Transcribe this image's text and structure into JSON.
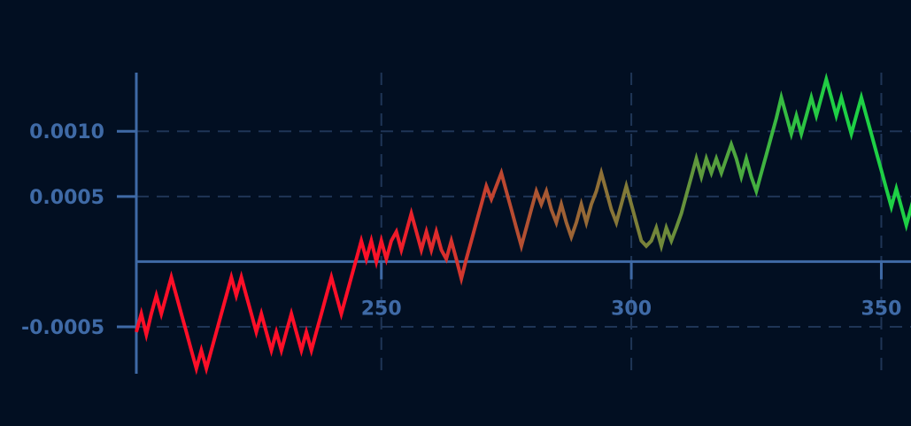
{
  "chart_data": {
    "type": "line",
    "title": "",
    "xlabel": "",
    "ylabel": "",
    "xlim": [
      201,
      357
    ],
    "ylim": [
      -0.00086,
      0.00145
    ],
    "x_ticks": [
      250,
      300,
      350
    ],
    "x_tick_labels": [
      "250",
      "300",
      "350"
    ],
    "y_ticks": [
      -0.0005,
      0.0005,
      0.001
    ],
    "y_tick_labels": [
      "-0.0005",
      "0.0005",
      "0.0010"
    ],
    "grid": true,
    "legend": "none",
    "colors": {
      "background": "#020f22",
      "axis": "#3f6aa6",
      "grid": "#1f3556",
      "tick_label": "#3f6aa6",
      "line_start": "#ff0f28",
      "line_end": "#1ed045"
    },
    "x": [
      201,
      202,
      203,
      204,
      205,
      206,
      207,
      208,
      209,
      210,
      211,
      212,
      213,
      214,
      215,
      216,
      217,
      218,
      219,
      220,
      221,
      222,
      223,
      224,
      225,
      226,
      227,
      228,
      229,
      230,
      231,
      232,
      233,
      234,
      235,
      236,
      237,
      238,
      239,
      240,
      241,
      242,
      243,
      244,
      245,
      246,
      247,
      248,
      249,
      250,
      251,
      252,
      253,
      254,
      255,
      256,
      257,
      258,
      259,
      260,
      261,
      262,
      263,
      264,
      265,
      266,
      267,
      268,
      269,
      270,
      271,
      272,
      273,
      274,
      275,
      276,
      277,
      278,
      279,
      280,
      281,
      282,
      283,
      284,
      285,
      286,
      287,
      288,
      289,
      290,
      291,
      292,
      293,
      294,
      295,
      296,
      297,
      298,
      299,
      300,
      301,
      302,
      303,
      304,
      305,
      306,
      307,
      308,
      309,
      310,
      311,
      312,
      313,
      314,
      315,
      316,
      317,
      318,
      319,
      320,
      321,
      322,
      323,
      324,
      325,
      326,
      327,
      328,
      329,
      330,
      331,
      332,
      333,
      334,
      335,
      336,
      337,
      338,
      339,
      340,
      341,
      342,
      343,
      344,
      345,
      346,
      347,
      348,
      349,
      350,
      351,
      352,
      353,
      354,
      355,
      356,
      357
    ],
    "values": [
      -0.00054,
      -0.0004,
      -0.00056,
      -0.0004,
      -0.00026,
      -0.0004,
      -0.00026,
      -0.00012,
      -0.00026,
      -0.0004,
      -0.00054,
      -0.00068,
      -0.00082,
      -0.00068,
      -0.00082,
      -0.00068,
      -0.00054,
      -0.0004,
      -0.00026,
      -0.00012,
      -0.00026,
      -0.00012,
      -0.00026,
      -0.0004,
      -0.00054,
      -0.0004,
      -0.00054,
      -0.00068,
      -0.00054,
      -0.00068,
      -0.00054,
      -0.0004,
      -0.00054,
      -0.00068,
      -0.00054,
      -0.00068,
      -0.00054,
      -0.0004,
      -0.00026,
      -0.00012,
      -0.00026,
      -0.0004,
      -0.00026,
      -0.00012,
      2e-05,
      0.00016,
      2e-05,
      0.00016,
      0.0,
      0.00016,
      2e-05,
      0.00016,
      0.00023,
      9e-05,
      0.00023,
      0.00037,
      0.00023,
      9e-05,
      0.00023,
      9e-05,
      0.00023,
      9e-05,
      2e-05,
      0.00016,
      2e-05,
      -0.00013,
      2e-05,
      0.00016,
      0.0003,
      0.00044,
      0.00058,
      0.00048,
      0.00058,
      0.00068,
      0.00054,
      0.0004,
      0.00026,
      0.00012,
      0.00026,
      0.0004,
      0.00054,
      0.00044,
      0.00054,
      0.0004,
      0.0003,
      0.00044,
      0.0003,
      0.00019,
      0.0003,
      0.00044,
      0.0003,
      0.00044,
      0.00054,
      0.00068,
      0.00054,
      0.0004,
      0.0003,
      0.00044,
      0.00058,
      0.00044,
      0.0003,
      0.00016,
      0.00012,
      0.00016,
      0.00026,
      0.00012,
      0.00026,
      0.00016,
      0.00026,
      0.00037,
      0.00051,
      0.00065,
      0.00079,
      0.00065,
      0.00079,
      0.00068,
      0.00079,
      0.00068,
      0.00079,
      0.0009,
      0.00079,
      0.00065,
      0.00079,
      0.00065,
      0.00054,
      0.00068,
      0.00082,
      0.00096,
      0.0011,
      0.00126,
      0.00112,
      0.00098,
      0.00112,
      0.00098,
      0.00112,
      0.00126,
      0.00112,
      0.00126,
      0.0014,
      0.00126,
      0.00112,
      0.00126,
      0.00112,
      0.00098,
      0.00112,
      0.00126,
      0.00112,
      0.00098,
      0.00084,
      0.0007,
      0.00056,
      0.00042,
      0.00056,
      0.00042,
      0.00028,
      0.00042,
      0.00028
    ]
  }
}
